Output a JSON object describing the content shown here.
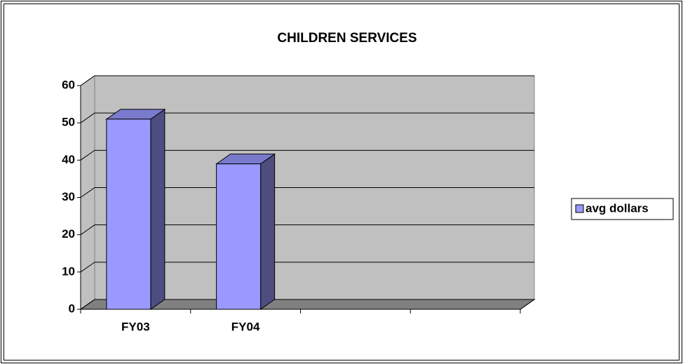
{
  "chart_data": {
    "type": "bar3d",
    "title": "CHILDREN SERVICES",
    "categories": [
      "FY03",
      "FY04",
      null,
      null
    ],
    "series": [
      {
        "name": "avg dollars",
        "color": "#9999ff",
        "values": [
          51,
          39,
          null,
          null
        ]
      }
    ],
    "ylim": [
      0,
      60
    ],
    "yticks": [
      0,
      10,
      20,
      30,
      40,
      50,
      60
    ],
    "grid": true,
    "legend": "right"
  }
}
